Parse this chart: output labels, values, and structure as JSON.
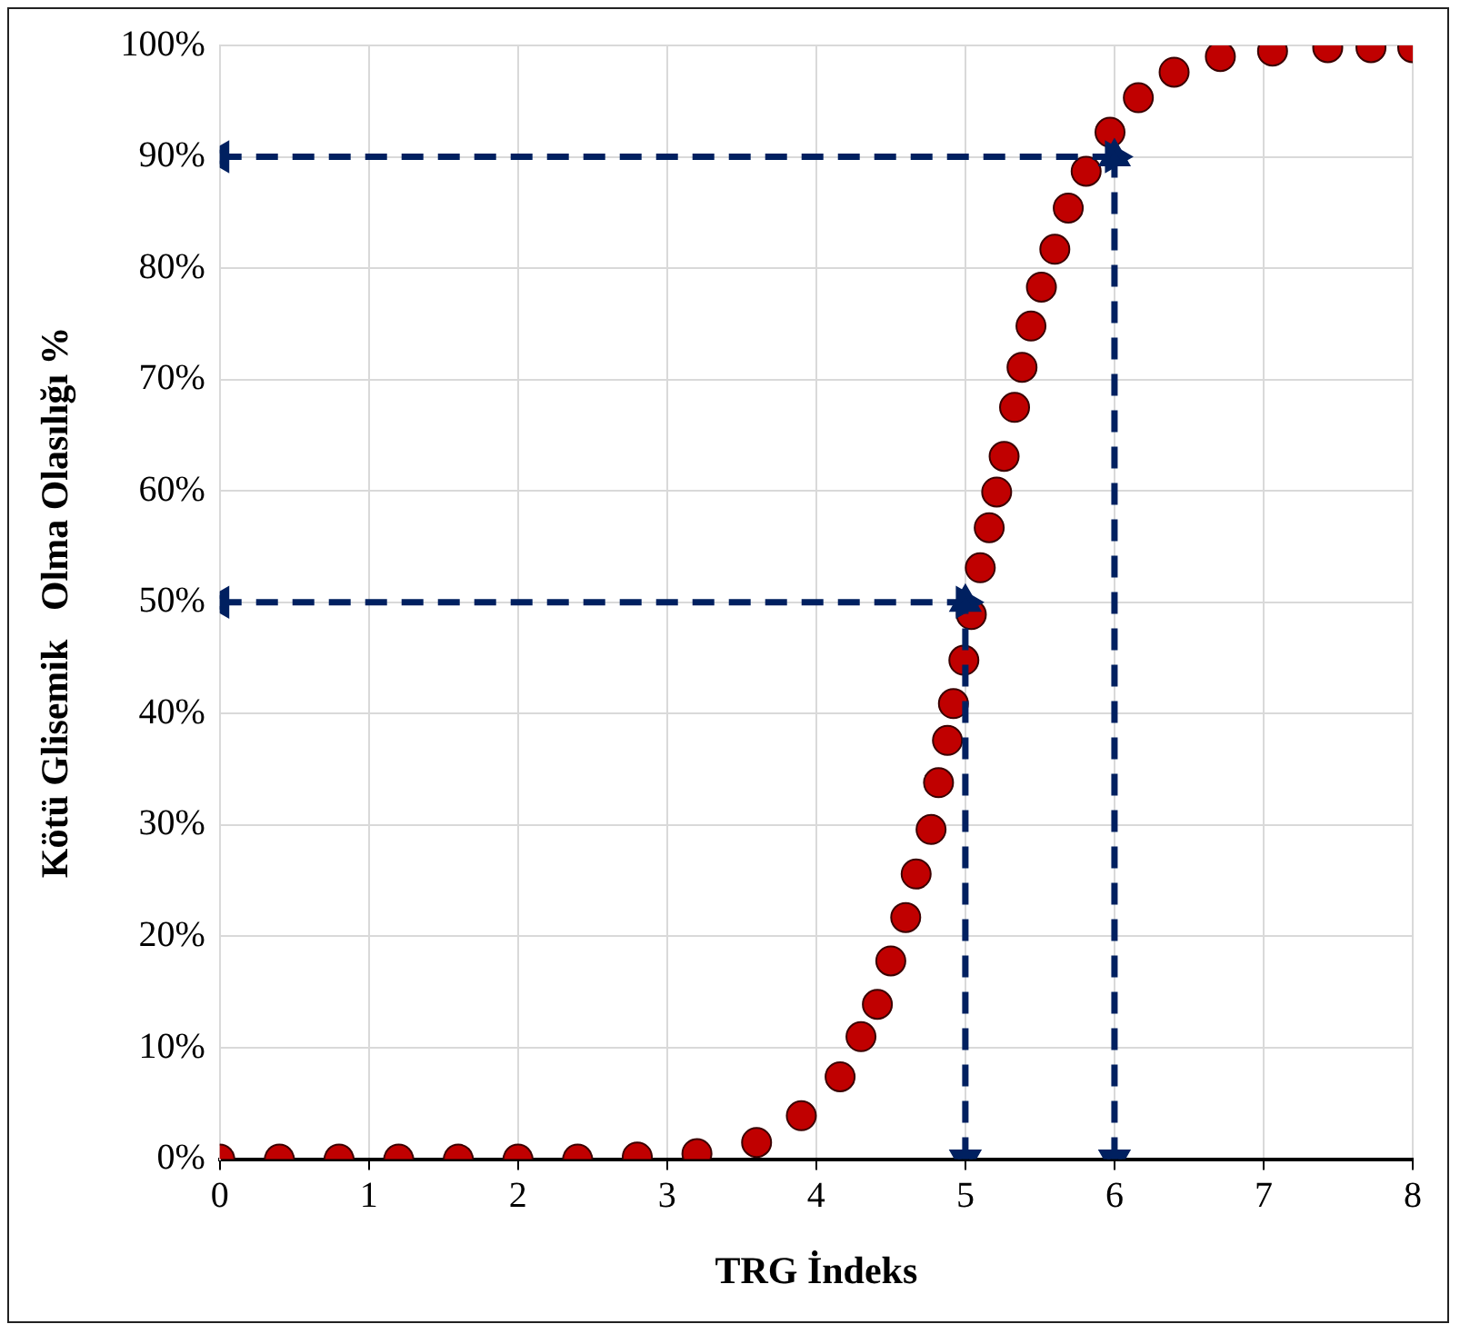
{
  "chart_data": {
    "type": "scatter",
    "xlabel": "TRG İndeks",
    "ylabel": "Kötü Glisemik   Olma Olasılığı %",
    "x": [
      0,
      0.4,
      0.8,
      1.2,
      1.6,
      2.0,
      2.4,
      2.8,
      3.2,
      3.6,
      3.9,
      4.16,
      4.3,
      4.41,
      4.5,
      4.6,
      4.67,
      4.77,
      4.82,
      4.88,
      4.92,
      4.99,
      5.04,
      5.1,
      5.16,
      5.21,
      5.26,
      5.33,
      5.38,
      5.44,
      5.51,
      5.6,
      5.69,
      5.81,
      5.97,
      6.16,
      6.4,
      6.71,
      7.06,
      7.43,
      7.72,
      8
    ],
    "series": [
      {
        "color": "#c00000",
        "values": [
          0,
          0,
          0,
          0,
          0,
          0,
          0,
          0.2,
          0.5,
          1.5,
          3.9,
          7.4,
          11,
          13.9,
          17.8,
          21.7,
          25.6,
          29.6,
          33.8,
          37.6,
          40.9,
          44.8,
          48.9,
          53.1,
          56.7,
          59.9,
          63.1,
          67.5,
          71.1,
          74.8,
          78.3,
          81.7,
          85.4,
          88.7,
          92.2,
          95.3,
          97.6,
          99.0,
          99.5,
          99.8,
          99.8,
          99.8
        ]
      },
      {
        "type": "line",
        "color": "#002060",
        "line_style": "dashed",
        "marker": "triangle",
        "x": [
          0,
          5
        ],
        "values": [
          50,
          50
        ]
      },
      {
        "type": "line",
        "color": "#002060",
        "line_style": "dashed",
        "marker": "triangle",
        "x": [
          5,
          5
        ],
        "values": [
          0,
          50
        ]
      },
      {
        "type": "line",
        "color": "#002060",
        "line_style": "dashed",
        "marker": "triangle",
        "x": [
          0,
          6
        ],
        "values": [
          90,
          90
        ]
      },
      {
        "type": "line",
        "color": "#002060",
        "line_style": "dashed",
        "marker": "triangle",
        "x": [
          6,
          6
        ],
        "values": [
          0,
          90
        ]
      }
    ],
    "xlim": [
      0,
      8
    ],
    "xticks": [
      0,
      1,
      2,
      3,
      4,
      5,
      6,
      7,
      8
    ],
    "ylim": [
      0,
      100
    ],
    "yticks": [
      {
        "value": 0,
        "label": "0%"
      },
      {
        "value": 10,
        "label": "10%"
      },
      {
        "value": 20,
        "label": "20%"
      },
      {
        "value": 30,
        "label": "30%"
      },
      {
        "value": 40,
        "label": "40%"
      },
      {
        "value": 50,
        "label": "50%"
      },
      {
        "value": 60,
        "label": "60%"
      },
      {
        "value": 70,
        "label": "70%"
      },
      {
        "value": 80,
        "label": "80%"
      },
      {
        "value": 90,
        "label": "90%"
      },
      {
        "value": 100,
        "label": "100%"
      }
    ],
    "grid": true,
    "legend": false,
    "marker": "circle"
  }
}
